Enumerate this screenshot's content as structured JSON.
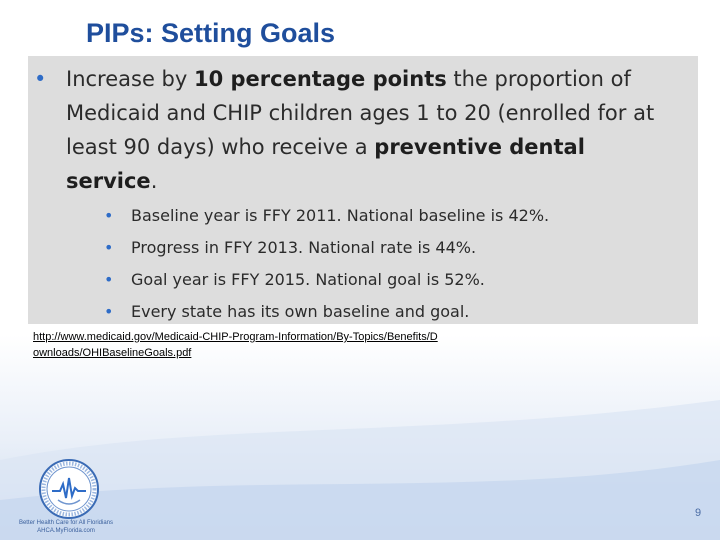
{
  "slide": {
    "title": "PIPs: Setting Goals",
    "main_bullet": {
      "parts": [
        {
          "text": "Increase by ",
          "bold": false
        },
        {
          "text": "10 percentage points",
          "bold": true
        },
        {
          "text": " the proportion of Medicaid and CHIP children ages 1 to 20 (enrolled for at least 90 days) who receive a ",
          "bold": false
        },
        {
          "text": "preventive dental service",
          "bold": true
        },
        {
          "text": ".",
          "bold": false
        }
      ]
    },
    "sub_bullets": [
      "Baseline year is FFY 2011.  National baseline is 42%.",
      "Progress in FFY 2013. National rate is 44%.",
      "Goal year is FFY 2015. National goal is 52%.",
      "Every state has its own baseline and goal."
    ],
    "source_url": "http://www.medicaid.gov/Medicaid-CHIP-Program-Information/By-Topics/Benefits/Downloads/OHIBaselineGoals.pdf",
    "page_number": "9"
  },
  "logo": {
    "line1": "Better Health Care for All Floridians",
    "line2": "AHCA.MyFlorida.com"
  },
  "colors": {
    "title": "#1f4e9c",
    "bullet": "#2e6cc7",
    "panel": "#dddddd",
    "footer_gradient": "#c9d8ee"
  }
}
